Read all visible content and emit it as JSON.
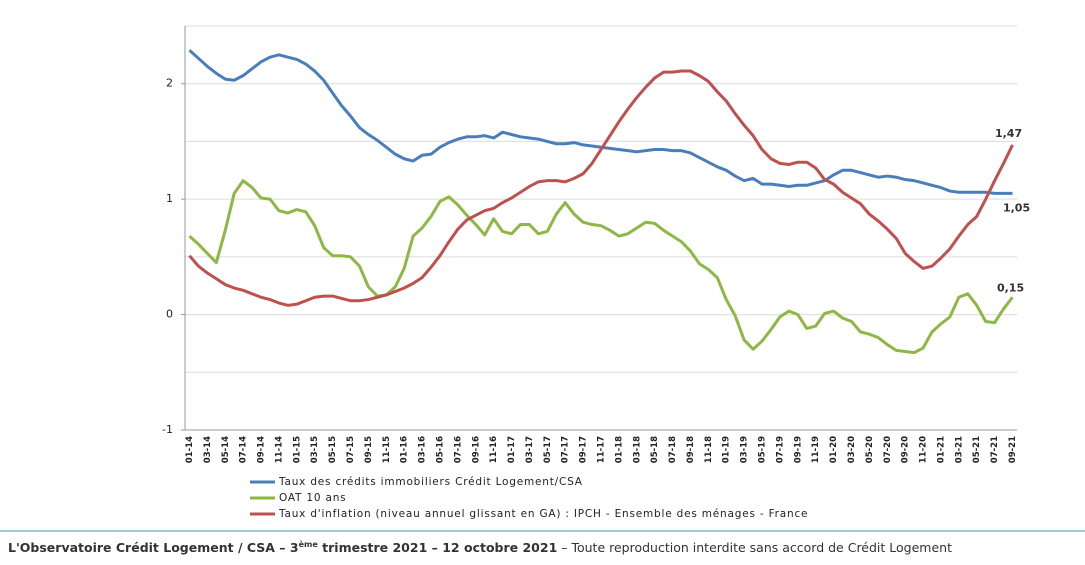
{
  "chart_data": {
    "type": "line",
    "categories": [
      "01-14",
      null,
      "03-14",
      null,
      "05-14",
      null,
      "07-14",
      null,
      "09-14",
      null,
      "11-14",
      null,
      "01-15",
      null,
      "03-15",
      null,
      "05-15",
      null,
      "07-15",
      null,
      "09-15",
      null,
      "11-15",
      null,
      "01-16",
      null,
      "03-16",
      null,
      "05-16",
      null,
      "07-16",
      null,
      "09-16",
      null,
      "11-16",
      null,
      "01-17",
      null,
      "03-17",
      null,
      "05-17",
      null,
      "07-17",
      null,
      "09-17",
      null,
      "11-17",
      null,
      "01-18",
      null,
      "03-18",
      null,
      "05-18",
      null,
      "07-18",
      null,
      "09-18",
      null,
      "11-18",
      null,
      "01-19",
      null,
      "03-19",
      null,
      "05-19",
      null,
      "07-19",
      null,
      "09-19",
      null,
      "11-19",
      null,
      "01-20",
      null,
      "03-20",
      null,
      "05-20",
      null,
      "07-20",
      null,
      "09-20",
      null,
      "11-20",
      null,
      "01-21",
      null,
      "03-21",
      null,
      "05-21",
      null,
      "07-21",
      null,
      "09-21"
    ],
    "series": [
      {
        "name": "Taux des crédits immobiliers Crédit Logement/CSA",
        "color": "#4a7ebb",
        "values": [
          2.29,
          2.22,
          2.15,
          2.09,
          2.04,
          2.03,
          2.07,
          2.13,
          2.19,
          2.23,
          2.25,
          2.23,
          2.21,
          2.17,
          2.11,
          2.03,
          1.92,
          1.81,
          1.72,
          1.62,
          1.56,
          1.51,
          1.45,
          1.39,
          1.35,
          1.33,
          1.38,
          1.39,
          1.45,
          1.49,
          1.52,
          1.54,
          1.54,
          1.55,
          1.53,
          1.58,
          1.56,
          1.54,
          1.53,
          1.52,
          1.5,
          1.48,
          1.48,
          1.49,
          1.47,
          1.46,
          1.45,
          1.44,
          1.43,
          1.42,
          1.41,
          1.42,
          1.43,
          1.43,
          1.42,
          1.42,
          1.4,
          1.36,
          1.32,
          1.28,
          1.25,
          1.2,
          1.16,
          1.18,
          1.13,
          1.13,
          1.12,
          1.11,
          1.12,
          1.12,
          1.14,
          1.16,
          1.21,
          1.25,
          1.25,
          1.23,
          1.21,
          1.19,
          1.2,
          1.19,
          1.17,
          1.16,
          1.14,
          1.12,
          1.1,
          1.07,
          1.06,
          1.06,
          1.06,
          1.06,
          1.05,
          1.05,
          1.05
        ],
        "value_labels": [
          null,
          null,
          null,
          null,
          null,
          null,
          null,
          null,
          null,
          null,
          null,
          null,
          null,
          null,
          null,
          null,
          null,
          null,
          null,
          null,
          null,
          null,
          null,
          null,
          null,
          null,
          null,
          null,
          null,
          null,
          null,
          null,
          null,
          null,
          null,
          null,
          null,
          null,
          null,
          null,
          null,
          null,
          null,
          null,
          null,
          null,
          null,
          null,
          null,
          null,
          null,
          null,
          null,
          null,
          null,
          null,
          null,
          null,
          null,
          null,
          null,
          null,
          null,
          null,
          null,
          null,
          null,
          null,
          null,
          null,
          null,
          null,
          null,
          null,
          null,
          null,
          null,
          null,
          null,
          null,
          null,
          null,
          null,
          null,
          null,
          null,
          null,
          null,
          null,
          null,
          null,
          null,
          "1,05"
        ]
      },
      {
        "name": "OAT 10 ans",
        "color": "#8db843",
        "values": [
          0.68,
          0.61,
          0.53,
          0.45,
          0.73,
          1.05,
          1.16,
          1.1,
          1.01,
          1.0,
          0.9,
          0.88,
          0.91,
          0.89,
          0.77,
          0.58,
          0.51,
          0.51,
          0.5,
          0.42,
          0.24,
          0.16,
          0.17,
          0.24,
          0.4,
          0.68,
          0.75,
          0.85,
          0.98,
          1.02,
          0.95,
          0.86,
          0.78,
          0.69,
          0.83,
          0.72,
          0.7,
          0.78,
          0.78,
          0.7,
          0.72,
          0.87,
          0.97,
          0.87,
          0.8,
          0.78,
          0.77,
          0.73,
          0.68,
          0.7,
          0.75,
          0.8,
          0.79,
          0.73,
          0.68,
          0.63,
          0.55,
          0.44,
          0.39,
          0.32,
          0.13,
          -0.01,
          -0.22,
          -0.3,
          -0.23,
          -0.13,
          -0.02,
          0.03,
          0.0,
          -0.12,
          -0.1,
          0.01,
          0.03,
          -0.03,
          -0.06,
          -0.15,
          -0.17,
          -0.2,
          -0.26,
          -0.31,
          -0.32,
          -0.33,
          -0.29,
          -0.15,
          -0.08,
          -0.02,
          0.15,
          0.18,
          0.08,
          -0.06,
          -0.07,
          0.05,
          0.15
        ],
        "value_labels": [
          null,
          null,
          null,
          null,
          null,
          null,
          null,
          null,
          null,
          null,
          null,
          null,
          null,
          null,
          null,
          null,
          null,
          null,
          null,
          null,
          null,
          null,
          null,
          null,
          null,
          null,
          null,
          null,
          null,
          null,
          null,
          null,
          null,
          null,
          null,
          null,
          null,
          null,
          null,
          null,
          null,
          null,
          null,
          null,
          null,
          null,
          null,
          null,
          null,
          null,
          null,
          null,
          null,
          null,
          null,
          null,
          null,
          null,
          null,
          null,
          null,
          null,
          null,
          null,
          null,
          null,
          null,
          null,
          null,
          null,
          null,
          null,
          null,
          null,
          null,
          null,
          null,
          null,
          null,
          null,
          null,
          null,
          null,
          null,
          null,
          null,
          null,
          null,
          null,
          null,
          null,
          null,
          "0,15"
        ]
      },
      {
        "name": "Taux d'inflation (niveau annuel glissant en GA) : IPCH - Ensemble des ménages - France",
        "color": "#c0504d",
        "values": [
          0.51,
          0.42,
          0.36,
          0.31,
          0.26,
          0.23,
          0.21,
          0.18,
          0.15,
          0.13,
          0.1,
          0.08,
          0.09,
          0.12,
          0.15,
          0.16,
          0.16,
          0.14,
          0.12,
          0.12,
          0.13,
          0.15,
          0.17,
          0.2,
          0.23,
          0.27,
          0.32,
          0.41,
          0.51,
          0.63,
          0.74,
          0.82,
          0.86,
          0.9,
          0.92,
          0.97,
          1.01,
          1.06,
          1.11,
          1.15,
          1.16,
          1.16,
          1.15,
          1.18,
          1.22,
          1.31,
          1.43,
          1.55,
          1.67,
          1.78,
          1.88,
          1.97,
          2.05,
          2.1,
          2.1,
          2.11,
          2.11,
          2.07,
          2.02,
          1.93,
          1.85,
          1.74,
          1.64,
          1.55,
          1.43,
          1.35,
          1.31,
          1.3,
          1.32,
          1.32,
          1.27,
          1.17,
          1.13,
          1.06,
          1.01,
          0.96,
          0.87,
          0.81,
          0.74,
          0.66,
          0.53,
          0.46,
          0.4,
          0.42,
          0.49,
          0.57,
          0.68,
          0.78,
          0.85,
          1.0,
          1.16,
          1.31,
          1.47
        ],
        "value_labels": [
          null,
          null,
          null,
          null,
          null,
          null,
          null,
          null,
          null,
          null,
          null,
          null,
          null,
          null,
          null,
          null,
          null,
          null,
          null,
          null,
          null,
          null,
          null,
          null,
          null,
          null,
          null,
          null,
          null,
          null,
          null,
          null,
          null,
          null,
          null,
          null,
          null,
          null,
          null,
          null,
          null,
          null,
          null,
          null,
          null,
          null,
          null,
          null,
          null,
          null,
          null,
          null,
          null,
          null,
          null,
          null,
          null,
          null,
          null,
          null,
          null,
          null,
          null,
          null,
          null,
          null,
          null,
          null,
          null,
          null,
          null,
          null,
          null,
          null,
          null,
          null,
          null,
          null,
          null,
          null,
          null,
          null,
          null,
          null,
          null,
          null,
          null,
          null,
          null,
          null,
          null,
          null,
          "1,47"
        ]
      }
    ],
    "ylim": [
      -1,
      2.5
    ],
    "yticks": [
      -1,
      0,
      1,
      2
    ],
    "grid_yticks": [
      -1,
      -0.5,
      0,
      0.5,
      1,
      1.5,
      2,
      2.5
    ],
    "grid": true,
    "legend": "bottom"
  },
  "footer": {
    "source": "L'Observatoire Crédit Logement / CSA – 3",
    "sup": "ème",
    "period": " trimestre 2021 – 12 octobre 2021",
    "notice": " – Toute reproduction interdite sans accord de Crédit Logement"
  }
}
